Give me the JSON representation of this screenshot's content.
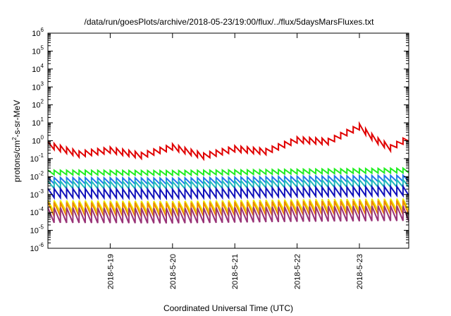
{
  "chart_data": {
    "type": "line",
    "title": "/data/run/goesPlots/archive/2018-05-23/19:00/flux/../flux/5daysMarsFluxes.txt",
    "xlabel": "Coordinated Universal Time (UTC)",
    "ylabel": {
      "base": "protons/cm",
      "sup": "2",
      "rest": "-s-sr-MeV"
    },
    "x_scale": "date",
    "xlim": [
      "2018-05-18T00:00",
      "2018-05-23T19:00"
    ],
    "x_ticks": [
      "2018-5-19",
      "2018-5-20",
      "2018-5-21",
      "2018-5-22",
      "2018-5-23"
    ],
    "y_scale": "log",
    "ylim": [
      1e-06,
      1000000.0
    ],
    "y_ticks": [
      {
        "base": "10",
        "exp": "-6"
      },
      {
        "base": "10",
        "exp": "-5"
      },
      {
        "base": "10",
        "exp": "-4"
      },
      {
        "base": "10",
        "exp": "-3"
      },
      {
        "base": "10",
        "exp": "-2"
      },
      {
        "base": "10",
        "exp": "-1"
      },
      {
        "base": "10",
        "exp": "0"
      },
      {
        "base": "10",
        "exp": "1"
      },
      {
        "base": "10",
        "exp": "2"
      },
      {
        "base": "10",
        "exp": "3"
      },
      {
        "base": "10",
        "exp": "4"
      },
      {
        "base": "10",
        "exp": "5"
      },
      {
        "base": "10",
        "exp": "6"
      }
    ],
    "grid": false,
    "sawtooth_period_hours": 2.4,
    "series": [
      {
        "color": "#e00000",
        "x": [
          "2018-05-18T00:00",
          "2018-05-18T12:00",
          "2018-05-19T00:00",
          "2018-05-19T12:00",
          "2018-05-20T00:00",
          "2018-05-20T12:00",
          "2018-05-21T00:00",
          "2018-05-21T12:00",
          "2018-05-22T00:00",
          "2018-05-22T12:00",
          "2018-05-23T00:00",
          "2018-05-23T06:00",
          "2018-05-23T12:00",
          "2018-05-23T19:00"
        ],
        "values": [
          0.6,
          0.18,
          0.3,
          0.15,
          0.45,
          0.14,
          0.35,
          0.25,
          1.1,
          0.9,
          6,
          1.2,
          0.4,
          1.4
        ],
        "amplitude": 2.2
      },
      {
        "color": "#22ee22",
        "x": [
          "2018-05-18T00:00",
          "2018-05-20T00:00",
          "2018-05-22T00:00",
          "2018-05-23T19:00"
        ],
        "values": [
          0.017,
          0.016,
          0.019,
          0.022
        ],
        "amplitude": 1.8
      },
      {
        "color": "#2277ee",
        "x": [
          "2018-05-18T00:00",
          "2018-05-20T00:00",
          "2018-05-22T00:00",
          "2018-05-23T19:00"
        ],
        "values": [
          0.006,
          0.0055,
          0.007,
          0.008
        ],
        "amplitude": 2.2
      },
      {
        "color": "#22bbbb",
        "x": [
          "2018-05-18T00:00",
          "2018-05-20T00:00",
          "2018-05-22T00:00",
          "2018-05-23T19:00"
        ],
        "values": [
          0.0035,
          0.0033,
          0.004,
          0.0042
        ],
        "amplitude": 2.6
      },
      {
        "color": "#1111bb",
        "x": [
          "2018-05-18T00:00",
          "2018-05-20T00:00",
          "2018-05-22T00:00",
          "2018-05-23T19:00"
        ],
        "values": [
          0.0012,
          0.0011,
          0.0014,
          0.0016
        ],
        "amplitude": 3.2
      },
      {
        "color": "#eeee00",
        "x": [
          "2018-05-18T00:00",
          "2018-05-20T00:00",
          "2018-05-22T00:00",
          "2018-05-23T19:00"
        ],
        "values": [
          0.00022,
          0.0002,
          0.00025,
          0.00028
        ],
        "amplitude": 4.5
      },
      {
        "color": "#ee8800",
        "x": [
          "2018-05-18T00:00",
          "2018-05-20T00:00",
          "2018-05-22T00:00",
          "2018-05-23T19:00"
        ],
        "values": [
          0.00015,
          0.00014,
          0.00017,
          0.00019
        ],
        "amplitude": 6
      },
      {
        "color": "#993377",
        "x": [
          "2018-05-18T00:00",
          "2018-05-20T00:00",
          "2018-05-22T00:00",
          "2018-05-23T19:00"
        ],
        "values": [
          7e-05,
          6.5e-05,
          8e-05,
          9e-05
        ],
        "amplitude": 7
      }
    ]
  }
}
